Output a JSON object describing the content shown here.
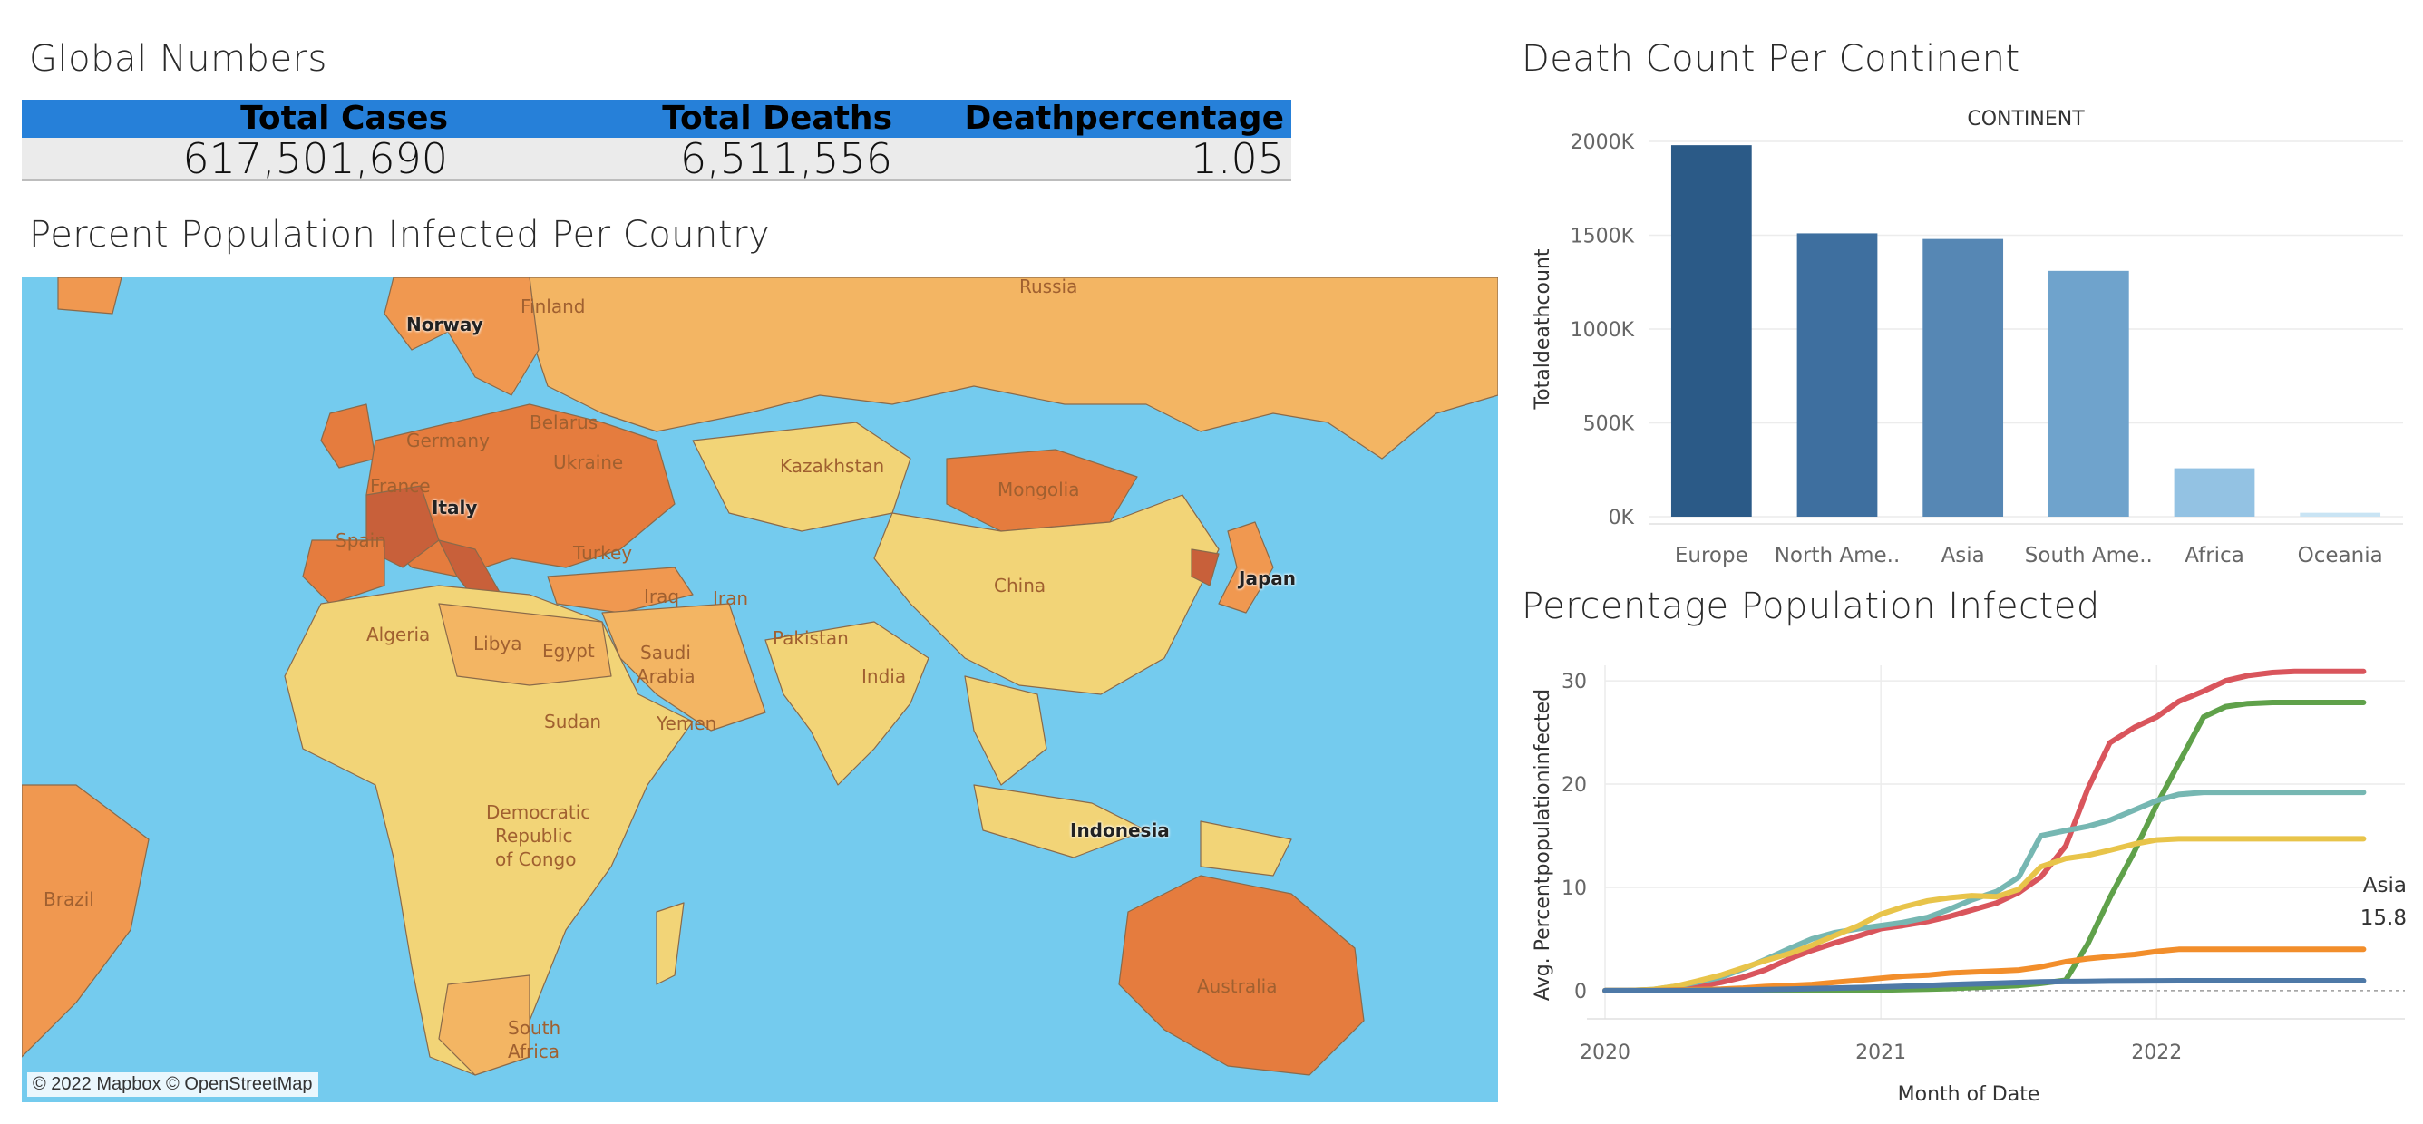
{
  "global_numbers": {
    "title": "Global Numbers",
    "headers": [
      "Total Cases",
      "Total Deaths",
      "Deathpercentage"
    ],
    "values": [
      "617,501,690",
      "6,511,556",
      "1.05"
    ],
    "header_color": "#2680d9"
  },
  "map": {
    "title": "Percent Population Infected Per Country",
    "attribution": "© 2022 Mapbox © OpenStreetMap",
    "labels": {
      "russia": "Russia",
      "norway": "Norway",
      "finland": "Finland",
      "belarus": "Belarus",
      "germany": "Germany",
      "ukraine": "Ukraine",
      "france": "France",
      "italy": "Italy",
      "spain": "Spain",
      "turkey": "Turkey",
      "kazakhstan": "Kazakhstan",
      "mongolia": "Mongolia",
      "china": "China",
      "japan": "Japan",
      "iraq": "Iraq",
      "iran": "Iran",
      "algeria": "Algeria",
      "libya": "Libya",
      "egypt": "Egypt",
      "saudi": "Saudi",
      "arabia": "Arabia",
      "pakistan": "Pakistan",
      "india": "India",
      "sudan": "Sudan",
      "yemen": "Yemen",
      "drc1": "Democratic",
      "drc2": "Republic",
      "drc3": "of Congo",
      "indonesia": "Indonesia",
      "brazil": "Brazil",
      "australia": "Australia",
      "sa1": "South",
      "sa2": "Africa"
    },
    "colors": {
      "water": "#74cbee",
      "high": "#c8603a",
      "mid_high": "#e57c3e",
      "mid": "#f09850",
      "low_mid": "#f3b563",
      "low": "#f2d477"
    }
  },
  "death_count": {
    "title": "Death Count Per Continent",
    "header": "CONTINENT"
  },
  "infected_line": {
    "title": "Percentage Population Infected",
    "annotation_label": "Asia",
    "annotation_value": "15.8"
  },
  "chart_data": [
    {
      "type": "bar",
      "title": "Death Count Per Continent",
      "xlabel": "CONTINENT",
      "ylabel": "Totaldeathcount",
      "categories": [
        "Europe",
        "North Ame..",
        "Asia",
        "South Ame..",
        "Africa",
        "Oceania"
      ],
      "values": [
        1980000,
        1510000,
        1480000,
        1310000,
        258000,
        21000
      ],
      "colors": [
        "#2b5a87",
        "#3e6f9f",
        "#5687b4",
        "#6fa3cc",
        "#93c2e3",
        "#c9e4f4"
      ],
      "ylim": [
        0,
        2000000
      ],
      "yticks": [
        0,
        500000,
        1000000,
        1500000,
        2000000
      ],
      "ytick_labels": [
        "0K",
        "500K",
        "1000K",
        "1500K",
        "2000K"
      ],
      "grid": true
    },
    {
      "type": "line",
      "title": "Percentage Population Infected",
      "xlabel": "Month of Date",
      "ylabel": "Avg. Percentpopulationinfected",
      "xlim": [
        2020.0,
        2022.9
      ],
      "ylim": [
        -1.5,
        31.5
      ],
      "yticks": [
        0,
        10,
        20,
        30
      ],
      "xticks": [
        2020,
        2021,
        2022
      ],
      "xtick_labels": [
        "2020",
        "2021",
        "2022"
      ],
      "grid": true,
      "x": [
        2020.0,
        2020.08,
        2020.17,
        2020.25,
        2020.33,
        2020.42,
        2020.5,
        2020.58,
        2020.67,
        2020.75,
        2020.83,
        2020.92,
        2021.0,
        2021.08,
        2021.17,
        2021.25,
        2021.33,
        2021.42,
        2021.5,
        2021.58,
        2021.67,
        2021.75,
        2021.83,
        2021.92,
        2022.0,
        2022.08,
        2022.17,
        2022.25,
        2022.33,
        2022.42,
        2022.5,
        2022.58,
        2022.67,
        2022.75
      ],
      "series": [
        {
          "color": "#d9555c",
          "values": [
            0,
            0,
            0.05,
            0.2,
            0.4,
            0.8,
            1.3,
            2.0,
            3.1,
            3.9,
            4.6,
            5.3,
            6.0,
            6.3,
            6.7,
            7.2,
            7.8,
            8.5,
            9.5,
            11.0,
            14.0,
            19.5,
            24.0,
            25.5,
            26.5,
            28.0,
            29.0,
            30.0,
            30.5,
            30.8,
            30.9,
            30.9,
            30.9,
            30.9
          ]
        },
        {
          "color": "#5fa14a",
          "values": [
            0,
            0,
            0,
            0,
            0,
            0,
            0,
            0,
            0,
            0,
            0,
            0,
            0.05,
            0.1,
            0.15,
            0.2,
            0.3,
            0.4,
            0.5,
            0.7,
            1.0,
            4.5,
            9.0,
            13.5,
            18.0,
            22.0,
            26.5,
            27.5,
            27.8,
            27.9,
            27.9,
            27.9,
            27.9,
            27.9
          ]
        },
        {
          "color": "#76b7b2",
          "values": [
            0,
            0,
            0.1,
            0.4,
            0.8,
            1.3,
            2.1,
            3.0,
            4.1,
            5.0,
            5.6,
            6.0,
            6.3,
            6.6,
            7.1,
            7.9,
            8.8,
            9.6,
            11.0,
            15.0,
            15.5,
            15.9,
            16.5,
            17.5,
            18.4,
            19.0,
            19.2,
            19.2,
            19.2,
            19.2,
            19.2,
            19.2,
            19.2,
            19.2
          ]
        },
        {
          "color": "#e8c44a",
          "values": [
            0,
            0,
            0.1,
            0.4,
            0.9,
            1.5,
            2.2,
            2.9,
            3.6,
            4.4,
            5.3,
            6.3,
            7.4,
            8.1,
            8.7,
            9.0,
            9.2,
            9.1,
            9.8,
            12.0,
            12.8,
            13.1,
            13.6,
            14.2,
            14.6,
            14.7,
            14.7,
            14.7,
            14.7,
            14.7,
            14.7,
            14.7,
            14.7,
            14.7
          ]
        },
        {
          "color": "#f28e2b",
          "values": [
            0,
            0,
            0,
            0.05,
            0.1,
            0.15,
            0.25,
            0.4,
            0.5,
            0.6,
            0.8,
            1.0,
            1.2,
            1.4,
            1.5,
            1.7,
            1.8,
            1.9,
            2.0,
            2.3,
            2.8,
            3.1,
            3.3,
            3.5,
            3.8,
            4.0,
            4.0,
            4.0,
            4.0,
            4.0,
            4.0,
            4.0,
            4.0,
            4.0
          ]
        },
        {
          "color": "#4e79a7",
          "values": [
            0,
            0,
            0,
            0,
            0.02,
            0.04,
            0.06,
            0.1,
            0.14,
            0.2,
            0.25,
            0.3,
            0.35,
            0.42,
            0.5,
            0.58,
            0.65,
            0.72,
            0.78,
            0.84,
            0.88,
            0.9,
            0.92,
            0.94,
            0.95,
            0.96,
            0.96,
            0.96,
            0.96,
            0.96,
            0.96,
            0.96,
            0.96,
            0.96
          ]
        }
      ],
      "annotation": {
        "label": "Asia",
        "value": "15.8"
      }
    }
  ]
}
